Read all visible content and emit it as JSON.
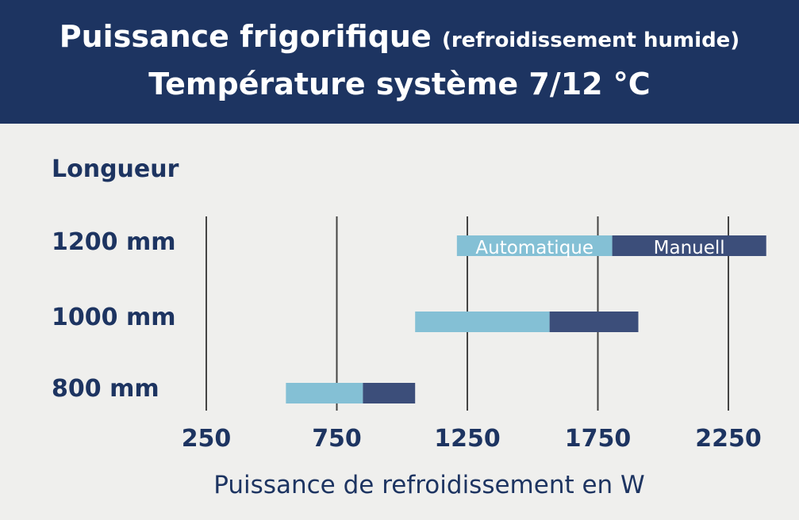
{
  "header": {
    "title_main": "Puissance frigorifique",
    "title_sub": "(refroidissement humide)",
    "title_line2": "Température système 7/12 °C"
  },
  "colors": {
    "header_bg": "#1d3461",
    "automatic": "#84c0d5",
    "manual": "#3c4e7a",
    "text": "#1d3461",
    "grid": "#444444"
  },
  "chart_data": {
    "type": "bar",
    "orientation": "horizontal",
    "stacked_ranges": true,
    "y_axis_title": "Longueur",
    "xlabel": "Puissance de refroidissement en W",
    "x_ticks": [
      250,
      750,
      1250,
      1750,
      2250
    ],
    "xlim": [
      250,
      2250
    ],
    "grid": true,
    "categories": [
      "1200 mm",
      "1000 mm",
      "800 mm"
    ],
    "series": [
      {
        "name": "Automatique",
        "ranges": [
          [
            1210,
            1805
          ],
          [
            1050,
            1565
          ],
          [
            555,
            850
          ]
        ]
      },
      {
        "name": "Manuell",
        "ranges": [
          [
            1805,
            2395
          ],
          [
            1565,
            1905
          ],
          [
            850,
            1050
          ]
        ]
      }
    ],
    "legend": "inside-top-bar"
  }
}
